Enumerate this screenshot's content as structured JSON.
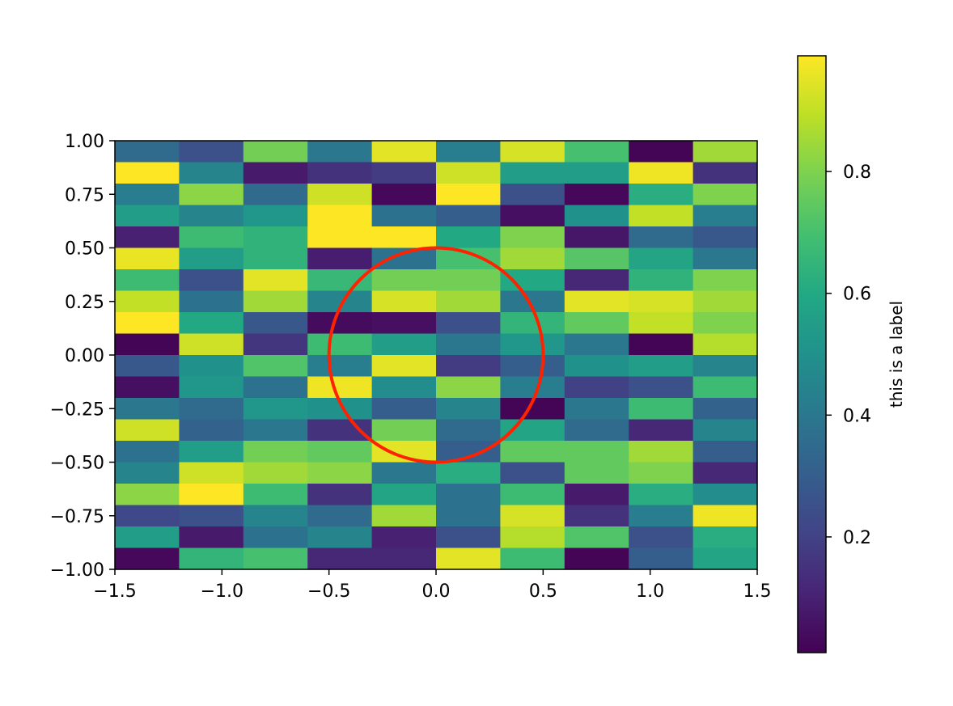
{
  "chart_data": {
    "type": "heatmap",
    "title": "",
    "xlabel": "",
    "ylabel": "",
    "xlim": [
      -1.5,
      1.5
    ],
    "ylim": [
      -1.0,
      1.0
    ],
    "x_ticks": [
      -1.5,
      -1.0,
      -0.5,
      0.0,
      0.5,
      1.0,
      1.5
    ],
    "x_tick_labels": [
      "−1.5",
      "−1.0",
      "−0.5",
      "0.0",
      "0.5",
      "1.0",
      "1.5"
    ],
    "y_ticks": [
      1.0,
      0.75,
      0.5,
      0.25,
      0.0,
      -0.25,
      -0.5,
      -0.75,
      -1.0
    ],
    "y_tick_labels": [
      "1.00",
      "0.75",
      "0.50",
      "0.25",
      "0.00",
      "−0.25",
      "−0.50",
      "−0.75",
      "−1.00"
    ],
    "rows": 20,
    "cols": 10,
    "row_order": "top-to-bottom",
    "values": [
      [
        0.35,
        0.25,
        0.78,
        0.4,
        0.95,
        0.42,
        0.93,
        0.7,
        0.02,
        0.85
      ],
      [
        0.99,
        0.45,
        0.08,
        0.15,
        0.18,
        0.92,
        0.55,
        0.55,
        0.97,
        0.15
      ],
      [
        0.42,
        0.82,
        0.35,
        0.92,
        0.03,
        0.99,
        0.25,
        0.03,
        0.62,
        0.8
      ],
      [
        0.55,
        0.45,
        0.52,
        0.99,
        0.38,
        0.3,
        0.05,
        0.5,
        0.9,
        0.42
      ],
      [
        0.1,
        0.68,
        0.64,
        0.99,
        0.99,
        0.6,
        0.8,
        0.07,
        0.35,
        0.28
      ],
      [
        0.96,
        0.55,
        0.64,
        0.09,
        0.38,
        0.7,
        0.85,
        0.73,
        0.58,
        0.4
      ],
      [
        0.68,
        0.25,
        0.95,
        0.66,
        0.78,
        0.78,
        0.6,
        0.12,
        0.64,
        0.8
      ],
      [
        0.9,
        0.38,
        0.85,
        0.45,
        0.93,
        0.85,
        0.4,
        0.95,
        0.93,
        0.85
      ],
      [
        0.99,
        0.6,
        0.28,
        0.04,
        0.05,
        0.25,
        0.65,
        0.75,
        0.9,
        0.8
      ],
      [
        0.02,
        0.92,
        0.16,
        0.68,
        0.55,
        0.4,
        0.52,
        0.4,
        0.02,
        0.88
      ],
      [
        0.28,
        0.5,
        0.72,
        0.42,
        0.95,
        0.18,
        0.3,
        0.5,
        0.55,
        0.45
      ],
      [
        0.05,
        0.52,
        0.38,
        0.97,
        0.48,
        0.82,
        0.42,
        0.2,
        0.25,
        0.68
      ],
      [
        0.4,
        0.35,
        0.52,
        0.5,
        0.3,
        0.45,
        0.02,
        0.4,
        0.68,
        0.32
      ],
      [
        0.92,
        0.32,
        0.4,
        0.15,
        0.78,
        0.35,
        0.58,
        0.35,
        0.12,
        0.45
      ],
      [
        0.38,
        0.55,
        0.78,
        0.75,
        0.95,
        0.3,
        0.75,
        0.75,
        0.85,
        0.3
      ],
      [
        0.45,
        0.92,
        0.85,
        0.82,
        0.4,
        0.62,
        0.25,
        0.75,
        0.8,
        0.12
      ],
      [
        0.82,
        0.99,
        0.68,
        0.15,
        0.58,
        0.38,
        0.68,
        0.08,
        0.62,
        0.48
      ],
      [
        0.22,
        0.25,
        0.45,
        0.35,
        0.85,
        0.38,
        0.93,
        0.15,
        0.42,
        0.97
      ],
      [
        0.55,
        0.08,
        0.38,
        0.45,
        0.1,
        0.25,
        0.88,
        0.72,
        0.25,
        0.62
      ],
      [
        0.03,
        0.65,
        0.7,
        0.12,
        0.12,
        0.95,
        0.68,
        0.02,
        0.3,
        0.58
      ]
    ],
    "colormap": "viridis",
    "colorbar": {
      "label": "this is a label",
      "range": [
        0.01,
        0.99
      ],
      "ticks": [
        0.2,
        0.4,
        0.6,
        0.8
      ],
      "tick_labels": [
        "0.2",
        "0.4",
        "0.6",
        "0.8"
      ]
    },
    "annotations": [
      {
        "type": "circle",
        "center": [
          0.0,
          0.0
        ],
        "radius": 0.5,
        "color": "#ff2200"
      }
    ]
  }
}
